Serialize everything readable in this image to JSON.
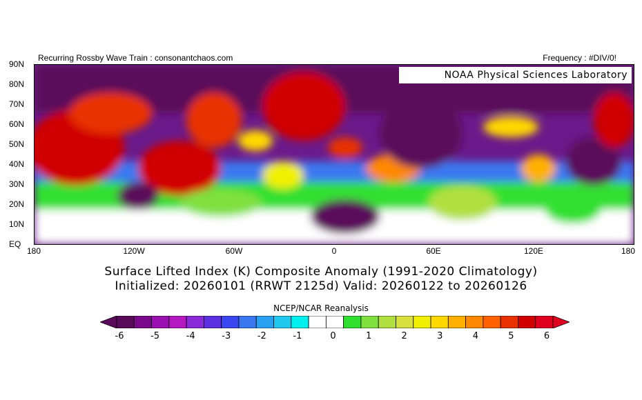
{
  "header": {
    "left": "Recurring Rossby Wave Train : consonantchaos.com",
    "right": "Frequency : #DIV/0!"
  },
  "map": {
    "credit": "NOAA Physical Sciences Laboratory",
    "y_labels": [
      "90N",
      "80N",
      "70N",
      "60N",
      "50N",
      "40N",
      "30N",
      "20N",
      "10N",
      "EQ"
    ],
    "x_labels": [
      "180",
      "120W",
      "60W",
      "0",
      "60E",
      "120E",
      "180"
    ]
  },
  "titles": {
    "line1": "Surface Lifted Index (K) Composite Anomaly (1991-2020 Climatology)",
    "line2": "Initialized: 20260101 (RRWT 2125d) Valid: 20260122 to 20260126"
  },
  "colorbar": {
    "source": "NCEP/NCAR Reanalysis",
    "labels": [
      "-6",
      "-5",
      "-4",
      "-3",
      "-2",
      "-1",
      "0",
      "1",
      "2",
      "3",
      "4",
      "5",
      "6"
    ],
    "colors": [
      "#5a0a5a",
      "#7a0a8a",
      "#9a10b0",
      "#b418c0",
      "#8a2ad8",
      "#5a30e0",
      "#3a46f0",
      "#3a78f0",
      "#2aa0f0",
      "#20c8f0",
      "#00f0f0",
      "#ffffff",
      "#ffffff",
      "#30e030",
      "#80e040",
      "#b0e040",
      "#d8e040",
      "#f0f000",
      "#ffd800",
      "#ffb000",
      "#ff8800",
      "#ff6000",
      "#e83000",
      "#d00000",
      "#e00020"
    ]
  }
}
